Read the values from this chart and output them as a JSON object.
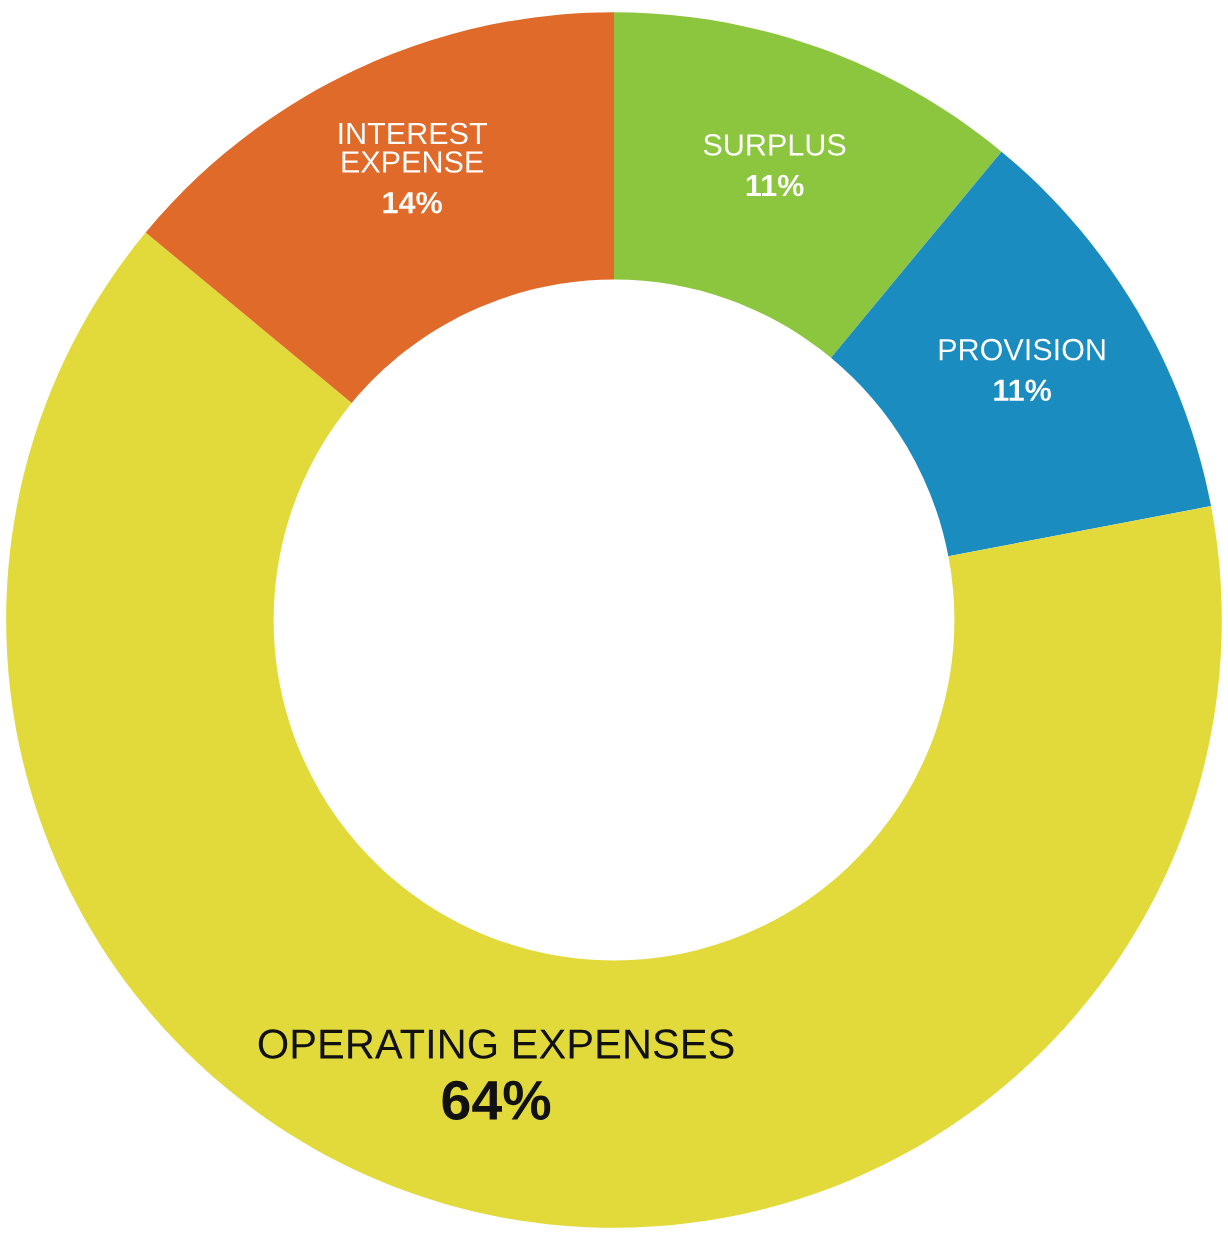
{
  "chart_data": {
    "type": "donut",
    "categories": [
      "SURPLUS",
      "PROVISION",
      "OPERATING EXPENSES",
      "INTEREST\nEXPENSE"
    ],
    "values": [
      11,
      11,
      64,
      14
    ],
    "value_labels": [
      "11%",
      "11%",
      "64%",
      "14%"
    ],
    "colors": [
      "#8cc63f",
      "#1a8cbf",
      "#e2da3a",
      "#e06a2a"
    ],
    "legend": false
  }
}
